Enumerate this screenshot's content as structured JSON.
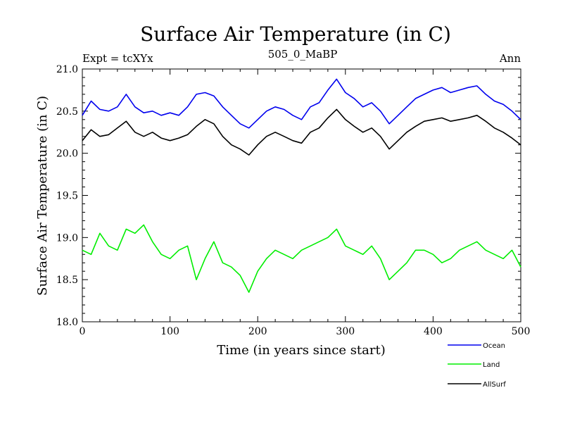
{
  "chart_data": {
    "type": "line",
    "title": "Surface Air Temperature (in C)",
    "subtitle_left": "Expt = tcXYx",
    "subtitle_center": "505_0_MaBP",
    "subtitle_right": "Ann",
    "xlabel": "Time (in years since start)",
    "ylabel": "Surface Air Temperature (in C)",
    "xlim": [
      0,
      500
    ],
    "ylim": [
      18.0,
      21.0
    ],
    "x_ticks": [
      0,
      100,
      200,
      300,
      400,
      500
    ],
    "y_ticks": [
      18.0,
      18.5,
      19.0,
      19.5,
      20.0,
      20.5,
      21.0
    ],
    "x_tick_labels": [
      "0",
      "100",
      "200",
      "300",
      "400",
      "500"
    ],
    "y_tick_labels": [
      "18.0",
      "18.5",
      "19.0",
      "19.5",
      "20.0",
      "20.5",
      "21.0"
    ],
    "grid": false,
    "legend_position": "bottom-right, outside plot",
    "x": [
      0,
      10,
      20,
      30,
      40,
      50,
      60,
      70,
      80,
      90,
      100,
      110,
      120,
      130,
      140,
      150,
      160,
      170,
      180,
      190,
      200,
      210,
      220,
      230,
      240,
      250,
      260,
      270,
      280,
      290,
      300,
      310,
      320,
      330,
      340,
      350,
      360,
      370,
      380,
      390,
      400,
      410,
      420,
      430,
      440,
      450,
      460,
      470,
      480,
      490,
      500
    ],
    "series": [
      {
        "name": "Ocean",
        "color": "#0000ee",
        "values": [
          20.45,
          20.62,
          20.52,
          20.5,
          20.55,
          20.7,
          20.55,
          20.48,
          20.5,
          20.45,
          20.48,
          20.45,
          20.55,
          20.7,
          20.72,
          20.68,
          20.55,
          20.45,
          20.35,
          20.3,
          20.4,
          20.5,
          20.55,
          20.52,
          20.45,
          20.4,
          20.55,
          20.6,
          20.75,
          20.88,
          20.72,
          20.65,
          20.55,
          20.6,
          20.5,
          20.35,
          20.45,
          20.55,
          20.65,
          20.7,
          20.75,
          20.78,
          20.72,
          20.75,
          20.78,
          20.8,
          20.7,
          20.62,
          20.58,
          20.5,
          20.4
        ]
      },
      {
        "name": "Land",
        "color": "#00ee00",
        "values": [
          18.85,
          18.8,
          19.05,
          18.9,
          18.85,
          19.1,
          19.05,
          19.15,
          18.95,
          18.8,
          18.75,
          18.85,
          18.9,
          18.5,
          18.75,
          18.95,
          18.7,
          18.65,
          18.55,
          18.35,
          18.6,
          18.75,
          18.85,
          18.8,
          18.75,
          18.85,
          18.9,
          18.95,
          19.0,
          19.1,
          18.9,
          18.85,
          18.8,
          18.9,
          18.75,
          18.5,
          18.6,
          18.7,
          18.85,
          18.85,
          18.8,
          18.7,
          18.75,
          18.85,
          18.9,
          18.95,
          18.85,
          18.8,
          18.75,
          18.85,
          18.65
        ]
      },
      {
        "name": "AllSurf",
        "color": "#000000",
        "values": [
          20.15,
          20.28,
          20.2,
          20.22,
          20.3,
          20.38,
          20.25,
          20.2,
          20.25,
          20.18,
          20.15,
          20.18,
          20.22,
          20.32,
          20.4,
          20.35,
          20.2,
          20.1,
          20.05,
          19.98,
          20.1,
          20.2,
          20.25,
          20.2,
          20.15,
          20.12,
          20.25,
          20.3,
          20.42,
          20.52,
          20.4,
          20.32,
          20.25,
          20.3,
          20.2,
          20.05,
          20.15,
          20.25,
          20.32,
          20.38,
          20.4,
          20.42,
          20.38,
          20.4,
          20.42,
          20.45,
          20.38,
          20.3,
          20.25,
          20.18,
          20.1
        ]
      }
    ]
  }
}
